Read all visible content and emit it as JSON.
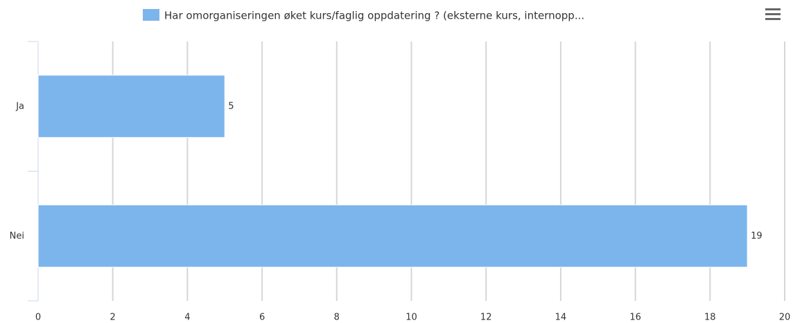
{
  "chart_data": {
    "type": "bar",
    "categories": [
      "Ja",
      "Nei"
    ],
    "series": [
      {
        "name": "Har omorganiseringen øket kurs/faglig oppdatering ? (eksterne kurs, internopp...",
        "color": "#7cb5ec",
        "values": [
          5,
          19
        ]
      }
    ],
    "xlim": [
      0,
      20
    ],
    "xticks": [
      0,
      2,
      4,
      6,
      8,
      10,
      12,
      14,
      16,
      18,
      20
    ],
    "grid": true,
    "legend": "top"
  }
}
